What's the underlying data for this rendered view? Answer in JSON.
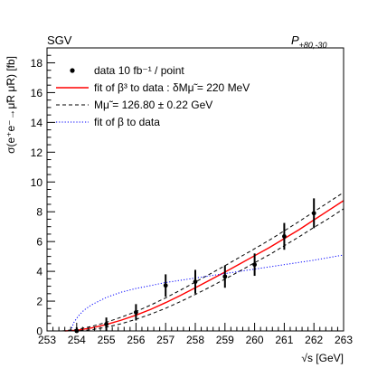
{
  "chart_data": {
    "type": "scatter",
    "title_left": "SGV",
    "title_right": {
      "main": "P",
      "sub": "+80,-30"
    },
    "xlabel": "√s [GeV]",
    "ylabel": "σ(e⁺e⁻→μ̃R μ̃R) [fb]",
    "xlim": [
      253,
      263
    ],
    "ylim": [
      0,
      19
    ],
    "xticks": [
      253,
      254,
      255,
      256,
      257,
      258,
      259,
      260,
      261,
      262,
      263
    ],
    "yticks": [
      0,
      2,
      4,
      6,
      8,
      10,
      12,
      14,
      16,
      18
    ],
    "grid": false,
    "legend": {
      "placement": "top-left",
      "entries": [
        {
          "label": "data 10 fb⁻¹ / point",
          "style": "marker"
        },
        {
          "label": "fit of β³ to data : δMμ̃ = 220 MeV",
          "style": "solid",
          "color": "#ff0000"
        },
        {
          "label": "Mμ̃ = 126.80 ± 0.22 GeV",
          "style": "dashed",
          "color": "#000000"
        },
        {
          "label": "fit of β to data",
          "style": "dotted",
          "color": "#0000ff"
        }
      ]
    },
    "data_points": {
      "x": [
        254,
        255,
        256,
        257,
        258,
        259,
        260,
        261,
        262
      ],
      "y": [
        0.0,
        0.45,
        1.25,
        3.05,
        3.3,
        3.65,
        4.45,
        6.35,
        7.9
      ],
      "err": [
        0.25,
        0.45,
        0.55,
        0.75,
        0.8,
        0.75,
        0.75,
        0.9,
        1.0
      ]
    },
    "series": [
      {
        "name": "fit of β³ to data",
        "style": "solid",
        "color": "#ff0000",
        "x": [
          253.6,
          254,
          254.5,
          255,
          255.5,
          256,
          256.5,
          257,
          257.5,
          258,
          258.5,
          259,
          259.5,
          260,
          260.5,
          261,
          261.5,
          262,
          262.5,
          263
        ],
        "y": [
          0,
          0.04,
          0.2,
          0.43,
          0.72,
          1.06,
          1.45,
          1.9,
          2.38,
          2.9,
          3.42,
          3.95,
          4.5,
          5.05,
          5.6,
          6.2,
          6.8,
          7.45,
          8.1,
          8.75
        ]
      },
      {
        "name": "Mμ̃ upper",
        "style": "dashed",
        "color": "#000000",
        "x": [
          253.5,
          254,
          254.5,
          255,
          255.5,
          256,
          256.5,
          257,
          257.5,
          258,
          258.5,
          259,
          259.5,
          260,
          260.5,
          261,
          261.5,
          262,
          262.5,
          263
        ],
        "y": [
          0,
          0.1,
          0.3,
          0.58,
          0.92,
          1.3,
          1.74,
          2.22,
          2.74,
          3.28,
          3.83,
          4.38,
          4.95,
          5.52,
          6.1,
          6.72,
          7.35,
          8.0,
          8.65,
          9.3
        ]
      },
      {
        "name": "Mμ̃ lower",
        "style": "dashed",
        "color": "#000000",
        "x": [
          253.9,
          254,
          254.5,
          255,
          255.5,
          256,
          256.5,
          257,
          257.5,
          258,
          258.5,
          259,
          259.5,
          260,
          260.5,
          261,
          261.5,
          262,
          262.5,
          263
        ],
        "y": [
          0,
          0.01,
          0.08,
          0.25,
          0.48,
          0.78,
          1.13,
          1.52,
          1.97,
          2.45,
          2.95,
          3.48,
          4.02,
          4.58,
          5.12,
          5.72,
          6.32,
          6.95,
          7.55,
          8.2
        ]
      },
      {
        "name": "fit of β to data",
        "style": "dotted",
        "color": "#0000ff",
        "x": [
          253.8,
          253.9,
          254,
          254.1,
          254.25,
          254.5,
          255,
          255.5,
          256,
          256.5,
          257,
          258,
          259,
          260,
          261,
          262,
          263
        ],
        "y": [
          0,
          0.55,
          0.85,
          1.1,
          1.4,
          1.75,
          2.25,
          2.6,
          2.85,
          3.05,
          3.25,
          3.55,
          3.85,
          4.15,
          4.45,
          4.75,
          5.1
        ]
      }
    ]
  }
}
